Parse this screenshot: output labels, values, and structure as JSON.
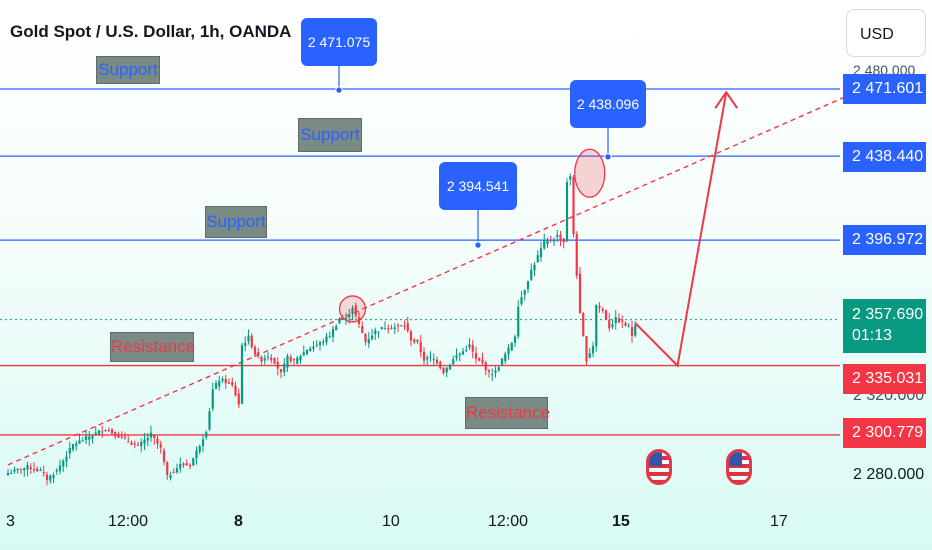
{
  "header": {
    "title": "Gold Spot / U.S. Dollar, 1h, OANDA",
    "currency_button": "USD"
  },
  "chart_data": {
    "type": "candlestick",
    "symbol": "Gold Spot / U.S. Dollar",
    "interval": "1h",
    "source": "OANDA",
    "currency": "USD",
    "y_axis": {
      "labels": [
        "2 471.601",
        "2 438.440",
        "2 396.972",
        "2 357.690",
        "2 335.031",
        "2 300.779",
        "2 280.000"
      ],
      "partially_hidden_labels": [
        "2 480.000",
        "2 320.000"
      ]
    },
    "x_axis": {
      "labels": [
        "3",
        "12:00",
        "8",
        "10",
        "12:00",
        "15",
        "17"
      ],
      "bold_labels": [
        "8",
        "15"
      ]
    },
    "last_price": "2 357.690",
    "countdown": "01:13",
    "horizontal_levels": [
      {
        "role": "support",
        "price": 2471.601,
        "tag": "2 471.601",
        "color": "#2962ff"
      },
      {
        "role": "support",
        "price": 2438.44,
        "tag": "2 438.440",
        "color": "#2962ff"
      },
      {
        "role": "support",
        "price": 2396.972,
        "tag": "2 396.972",
        "color": "#2962ff"
      },
      {
        "role": "resistance",
        "price": 2335.031,
        "tag": "2 335.031",
        "color": "#f23645"
      },
      {
        "role": "resistance",
        "price": 2300.779,
        "tag": "2 300.779",
        "color": "#f23645"
      }
    ],
    "zone_labels": [
      "Support",
      "Support",
      "Support",
      "Resistance",
      "Resistance"
    ],
    "callouts": [
      "2 471.075",
      "2 438.096",
      "2 394.541"
    ],
    "trendline": {
      "style": "dashed",
      "color": "#f23645",
      "from": {
        "bar": 0,
        "price": 2286
      },
      "to": {
        "bar": 258,
        "price": 2468
      }
    },
    "projection": {
      "color": "#f23645",
      "points": [
        {
          "bar": 193,
          "price": 2356
        },
        {
          "bar": 206,
          "price": 2335
        },
        {
          "bar": 221,
          "price": 2470
        }
      ]
    },
    "markers": [
      "high circle near 2 366",
      "high circle near 2 436"
    ],
    "events": [
      "us-flag-event",
      "us-flag-event"
    ],
    "bullish_color": "#089981",
    "bearish_color": "#f23645",
    "price_path": [
      [
        0,
        2282
      ],
      [
        6,
        2285
      ],
      [
        10,
        2283
      ],
      [
        12,
        2279
      ],
      [
        15,
        2283
      ],
      [
        20,
        2296
      ],
      [
        25,
        2300
      ],
      [
        30,
        2304
      ],
      [
        33,
        2301
      ],
      [
        40,
        2295
      ],
      [
        44,
        2301
      ],
      [
        47,
        2294
      ],
      [
        49,
        2280
      ],
      [
        53,
        2286
      ],
      [
        56,
        2286
      ],
      [
        59,
        2296
      ],
      [
        61,
        2303
      ],
      [
        63,
        2323
      ],
      [
        65,
        2328
      ],
      [
        67,
        2327
      ],
      [
        69,
        2325
      ],
      [
        71,
        2316
      ],
      [
        72,
        2345
      ],
      [
        74,
        2349
      ],
      [
        76,
        2341
      ],
      [
        78,
        2338
      ],
      [
        80,
        2340
      ],
      [
        82,
        2337
      ],
      [
        84,
        2331
      ],
      [
        86,
        2339
      ],
      [
        88,
        2337
      ],
      [
        92,
        2343
      ],
      [
        96,
        2346
      ],
      [
        99,
        2350
      ],
      [
        102,
        2358
      ],
      [
        104,
        2358
      ],
      [
        106,
        2364
      ],
      [
        108,
        2355
      ],
      [
        110,
        2347
      ],
      [
        113,
        2352
      ],
      [
        116,
        2354
      ],
      [
        119,
        2354
      ],
      [
        122,
        2355
      ],
      [
        124,
        2348
      ],
      [
        126,
        2346
      ],
      [
        128,
        2338
      ],
      [
        130,
        2339
      ],
      [
        132,
        2337
      ],
      [
        134,
        2332
      ],
      [
        136,
        2336
      ],
      [
        138,
        2340
      ],
      [
        140,
        2342
      ],
      [
        142,
        2345
      ],
      [
        144,
        2338
      ],
      [
        146,
        2336
      ],
      [
        148,
        2331
      ],
      [
        150,
        2332
      ],
      [
        152,
        2338
      ],
      [
        154,
        2343
      ],
      [
        156,
        2350
      ],
      [
        157,
        2365
      ],
      [
        159,
        2373
      ],
      [
        161,
        2382
      ],
      [
        163,
        2389
      ],
      [
        165,
        2396
      ],
      [
        167,
        2397
      ],
      [
        169,
        2399
      ],
      [
        171,
        2396
      ],
      [
        172,
        2426
      ],
      [
        173,
        2428
      ],
      [
        174,
        2400
      ],
      [
        175,
        2380
      ],
      [
        176,
        2360
      ],
      [
        177,
        2349
      ],
      [
        178,
        2338
      ],
      [
        180,
        2345
      ],
      [
        181,
        2365
      ],
      [
        183,
        2362
      ],
      [
        185,
        2354
      ],
      [
        187,
        2358
      ],
      [
        189,
        2356
      ],
      [
        191,
        2354
      ],
      [
        192,
        2350
      ],
      [
        193,
        2356
      ]
    ]
  }
}
